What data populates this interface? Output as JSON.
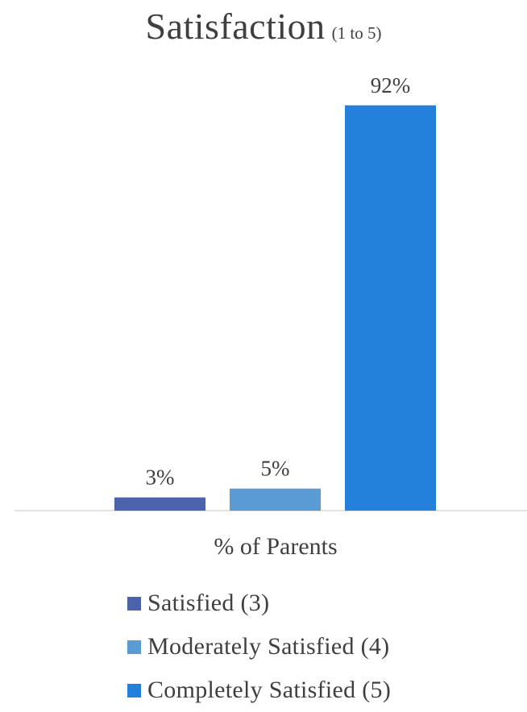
{
  "chart_data": {
    "type": "bar",
    "title": "Satisfaction",
    "subtitle": "(1 to 5)",
    "xlabel": "% of Parents",
    "ylabel": "",
    "ylim": [
      0,
      100
    ],
    "grid": false,
    "legend_position": "bottom",
    "categories": [
      "% of Parents"
    ],
    "series": [
      {
        "name": "Satisfied (3)",
        "values": [
          3
        ],
        "label": "3%",
        "color": "#4a63ac"
      },
      {
        "name": "Moderately Satisfied (4)",
        "values": [
          5
        ],
        "label": "5%",
        "color": "#5b9bd5"
      },
      {
        "name": "Completely Satisfied (5)",
        "values": [
          92
        ],
        "label": "92%",
        "color": "#237fd9"
      }
    ]
  }
}
